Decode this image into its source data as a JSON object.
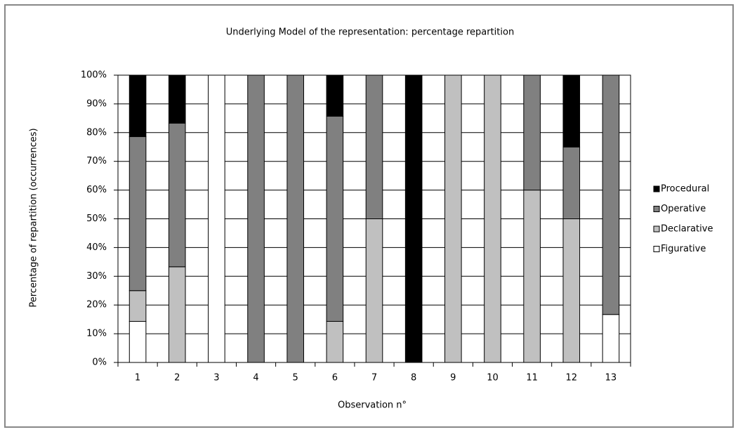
{
  "chart_data": {
    "type": "bar",
    "stacked": true,
    "title": "Underlying Model of the representation: percentage repartition",
    "x_label": "Observation n°",
    "y_label": "Percentage of repartition  (occurrences)",
    "categories": [
      "1",
      "2",
      "3",
      "4",
      "5",
      "6",
      "7",
      "8",
      "9",
      "10",
      "11",
      "12",
      "13"
    ],
    "series": [
      {
        "name": "Figurative",
        "color": "#ffffff",
        "values": [
          14.3,
          0,
          100,
          0,
          0,
          0,
          0,
          0,
          0,
          0,
          0,
          0,
          16.7
        ]
      },
      {
        "name": "Declarative",
        "color": "#c0c0c0",
        "values": [
          10.7,
          33.3,
          0,
          0,
          0,
          14.3,
          50,
          0,
          100,
          100,
          60,
          50,
          0
        ]
      },
      {
        "name": "Operative",
        "color": "#808080",
        "values": [
          53.6,
          50,
          0,
          100,
          100,
          71.4,
          50,
          0,
          0,
          0,
          40,
          25,
          83.3
        ]
      },
      {
        "name": "Procedural",
        "color": "#000000",
        "values": [
          21.4,
          16.7,
          0,
          0,
          0,
          14.3,
          0,
          100,
          0,
          0,
          0,
          25,
          0
        ]
      }
    ],
    "ylim": [
      0,
      100
    ],
    "yticks": [
      {
        "value": 0,
        "label": "0%"
      },
      {
        "value": 10,
        "label": "10%"
      },
      {
        "value": 20,
        "label": "20%"
      },
      {
        "value": 30,
        "label": "30%"
      },
      {
        "value": 40,
        "label": "40%"
      },
      {
        "value": 50,
        "label": "50%"
      },
      {
        "value": 60,
        "label": "60%"
      },
      {
        "value": 70,
        "label": "70%"
      },
      {
        "value": 80,
        "label": "80%"
      },
      {
        "value": 90,
        "label": "90%"
      },
      {
        "value": 100,
        "label": "100%"
      }
    ],
    "grid": true,
    "legend": "right"
  }
}
